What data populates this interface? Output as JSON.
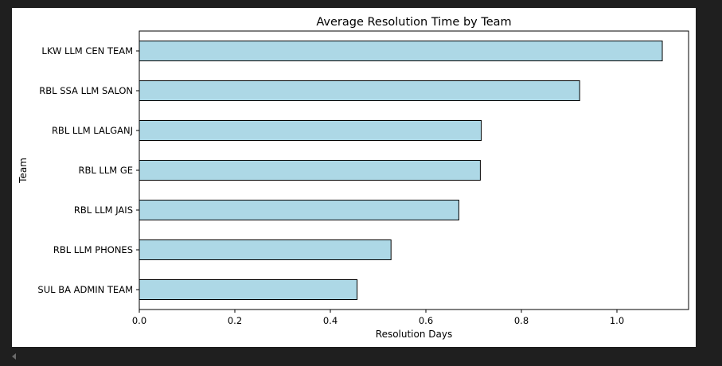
{
  "chart_data": {
    "type": "bar",
    "orientation": "horizontal",
    "title": "Average Resolution Time by Team",
    "xlabel": "Resolution Days",
    "ylabel": "Team",
    "categories": [
      "LKW LLM CEN TEAM",
      "RBL SSA LLM SALON",
      "RBL LLM LALGANJ",
      "RBL LLM GE",
      "RBL LLM JAIS",
      "RBL LLM PHONES",
      "SUL BA ADMIN TEAM"
    ],
    "values": [
      1.095,
      0.922,
      0.716,
      0.714,
      0.669,
      0.527,
      0.456
    ],
    "xlim": [
      0,
      1.15
    ],
    "xticks": [
      0.0,
      0.2,
      0.4,
      0.6,
      0.8,
      1.0
    ],
    "xtick_labels": [
      "0.0",
      "0.2",
      "0.4",
      "0.6",
      "0.8",
      "1.0"
    ],
    "grid": false,
    "colors": {
      "bar_fill": "#add8e6",
      "bar_edge": "#000000"
    }
  }
}
